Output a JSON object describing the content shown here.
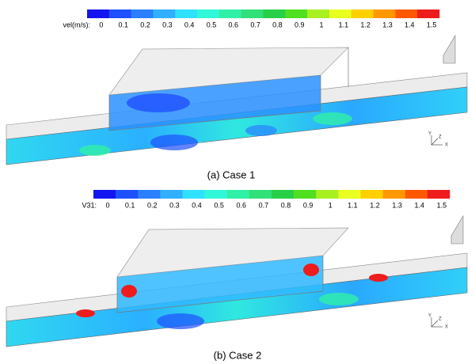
{
  "panels": [
    {
      "legend_label": "vel(m/s):",
      "ticks": [
        "0",
        "0.1",
        "0.2",
        "0.3",
        "0.4",
        "0.5",
        "0.6",
        "0.7",
        "0.8",
        "0.9",
        "1",
        "1.1",
        "1.2",
        "1.3",
        "1.4",
        "1.5"
      ],
      "caption": "(a)  Case  1",
      "axes": [
        "Y",
        "Z",
        "X"
      ]
    },
    {
      "legend_label": "V31:",
      "ticks": [
        "0",
        "0.1",
        "0.2",
        "0.3",
        "0.4",
        "0.5",
        "0.6",
        "0.7",
        "0.8",
        "0.9",
        "1",
        "1.1",
        "1.2",
        "1.3",
        "1.4",
        "1.5"
      ],
      "caption": "(b)  Case  2",
      "axes": [
        "Y",
        "Z",
        "X"
      ]
    }
  ],
  "colors": [
    "#1414f0",
    "#1e50ff",
    "#2a80ff",
    "#30b0ff",
    "#30e0ff",
    "#30f8d8",
    "#30f0a8",
    "#30e078",
    "#28d048",
    "#50e020",
    "#a8f020",
    "#e8ff20",
    "#ffd000",
    "#ff9800",
    "#ff5800",
    "#ee1c1c"
  ]
}
